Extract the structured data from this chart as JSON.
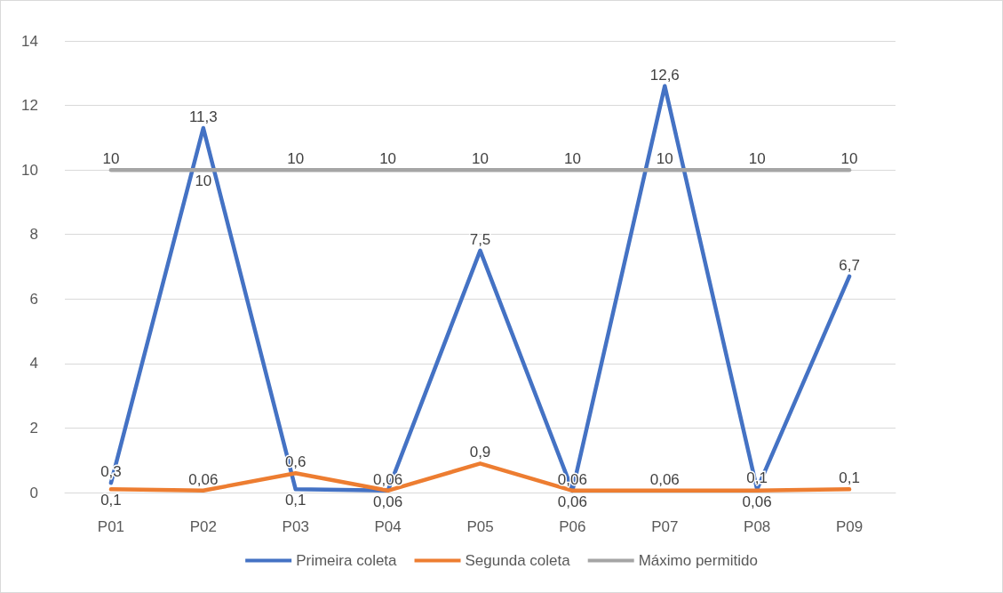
{
  "chart_data": {
    "type": "line",
    "categories": [
      "P01",
      "P02",
      "P03",
      "P04",
      "P05",
      "P06",
      "P07",
      "P08",
      "P09"
    ],
    "series": [
      {
        "name": "Primeira coleta",
        "color": "#4472c4",
        "values": [
          0.3,
          11.3,
          0.1,
          0.06,
          7.5,
          0.06,
          12.6,
          0.1,
          6.7
        ],
        "value_labels": [
          "0,3",
          "11,3",
          "0,1",
          "0,06",
          "7,5",
          "0,06",
          "12,6",
          "0,1",
          "6,7"
        ]
      },
      {
        "name": "Segunda coleta",
        "color": "#ed7d31",
        "values": [
          0.1,
          0.06,
          0.6,
          0.06,
          0.9,
          0.06,
          0.06,
          0.06,
          0.1
        ],
        "value_labels": [
          "0,1",
          "0,06",
          "0,6",
          "0,06",
          "0,9",
          "0,06",
          "0,06",
          "0,06",
          "0,1"
        ]
      },
      {
        "name": "Máximo permitido",
        "color": "#a5a5a5",
        "values": [
          10,
          10,
          10,
          10,
          10,
          10,
          10,
          10,
          10
        ],
        "value_labels": [
          "10",
          "10",
          "10",
          "10",
          "10",
          "10",
          "10",
          "10",
          "10"
        ]
      }
    ],
    "ylim": [
      0,
      14
    ],
    "yticks": [
      0,
      2,
      4,
      6,
      8,
      10,
      12,
      14
    ],
    "grid": "y",
    "legend": "bottom",
    "marker": "none",
    "line_style": "solid"
  }
}
